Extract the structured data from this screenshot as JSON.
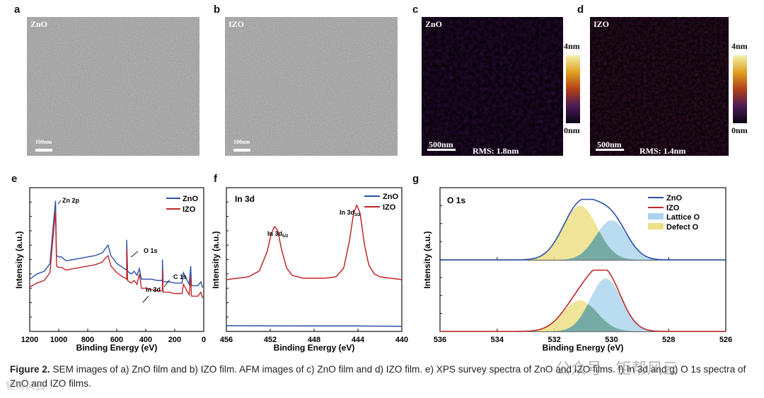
{
  "panels": {
    "a": {
      "letter": "a",
      "label": "ZnO",
      "scale": "100nm"
    },
    "b": {
      "letter": "b",
      "label": "IZO",
      "scale": "100nm"
    },
    "c": {
      "letter": "c",
      "label": "ZnO",
      "scale": "500nm",
      "rms": "RMS: 1.8nm",
      "cb_top": "4nm",
      "cb_bottom": "0nm"
    },
    "d": {
      "letter": "d",
      "label": "IZO",
      "scale": "500nm",
      "rms": "RMS: 1.4nm",
      "cb_top": "4nm",
      "cb_bottom": "0nm"
    },
    "e": {
      "letter": "e"
    },
    "f": {
      "letter": "f"
    },
    "g": {
      "letter": "g"
    }
  },
  "colors": {
    "zno": "#2b4fa8",
    "izo": "#c0282a",
    "lattice": "#a9d3ee",
    "defect": "#ecdf86",
    "overlap": "#5f9c92"
  },
  "chart_data": [
    {
      "id": "e",
      "type": "line",
      "title": "",
      "xlabel": "Binding Energy (eV)",
      "ylabel": "Intensity (a.u.)",
      "xlim": [
        1200,
        0
      ],
      "x_ticks": [
        "1200",
        "1000",
        "800",
        "600",
        "400",
        "200",
        "0"
      ],
      "legend": [
        "ZnO",
        "IZO"
      ],
      "legend_position": "top-right",
      "series": [
        {
          "name": "ZnO",
          "points": [
            [
              1200,
              40
            ],
            [
              1150,
              44
            ],
            [
              1100,
              46
            ],
            [
              1060,
              52
            ],
            [
              1045,
              72
            ],
            [
              1022,
              100
            ],
            [
              1015,
              58
            ],
            [
              1000,
              57
            ],
            [
              980,
              57
            ],
            [
              950,
              54
            ],
            [
              900,
              55
            ],
            [
              850,
              56
            ],
            [
              800,
              57
            ],
            [
              750,
              58
            ],
            [
              700,
              60
            ],
            [
              680,
              63
            ],
            [
              660,
              66
            ],
            [
              640,
              58
            ],
            [
              600,
              52
            ],
            [
              560,
              49
            ],
            [
              531,
              47
            ],
            [
              531,
              70
            ],
            [
              525,
              46
            ],
            [
              500,
              44
            ],
            [
              480,
              46
            ],
            [
              460,
              43
            ],
            [
              444,
              48
            ],
            [
              430,
              40
            ],
            [
              400,
              40
            ],
            [
              360,
              40
            ],
            [
              320,
              39
            ],
            [
              285,
              39
            ],
            [
              285,
              55
            ],
            [
              280,
              38
            ],
            [
              240,
              38
            ],
            [
              200,
              37
            ],
            [
              150,
              37
            ],
            [
              140,
              45
            ],
            [
              100,
              36
            ],
            [
              90,
              50
            ],
            [
              85,
              35
            ],
            [
              40,
              35
            ],
            [
              20,
              38
            ],
            [
              10,
              34
            ],
            [
              0,
              34
            ]
          ]
        },
        {
          "name": "IZO",
          "points": [
            [
              1200,
              34
            ],
            [
              1150,
              37
            ],
            [
              1100,
              39
            ],
            [
              1060,
              45
            ],
            [
              1045,
              65
            ],
            [
              1022,
              92
            ],
            [
              1015,
              50
            ],
            [
              1000,
              49
            ],
            [
              980,
              49
            ],
            [
              950,
              47
            ],
            [
              900,
              48
            ],
            [
              850,
              49
            ],
            [
              800,
              50
            ],
            [
              750,
              51
            ],
            [
              700,
              53
            ],
            [
              680,
              56
            ],
            [
              660,
              58
            ],
            [
              640,
              50
            ],
            [
              600,
              45
            ],
            [
              560,
              42
            ],
            [
              531,
              40
            ],
            [
              531,
              63
            ],
            [
              525,
              39
            ],
            [
              500,
              37
            ],
            [
              480,
              39
            ],
            [
              460,
              36
            ],
            [
              444,
              44
            ],
            [
              430,
              33
            ],
            [
              400,
              33
            ],
            [
              360,
              32
            ],
            [
              320,
              31
            ],
            [
              285,
              31
            ],
            [
              285,
              47
            ],
            [
              280,
              30
            ],
            [
              240,
              30
            ],
            [
              200,
              29
            ],
            [
              150,
              29
            ],
            [
              140,
              36
            ],
            [
              100,
              28
            ],
            [
              90,
              42
            ],
            [
              85,
              27
            ],
            [
              40,
              27
            ],
            [
              20,
              30
            ],
            [
              10,
              26
            ],
            [
              0,
              26
            ]
          ]
        }
      ],
      "annotations": [
        "Zn 2p",
        "O 1s",
        "C 1s",
        "In 3d"
      ]
    },
    {
      "id": "f",
      "type": "line",
      "title": "In 3d",
      "xlabel": "Binding Energy (eV)",
      "ylabel": "Intensity (a.u.)",
      "xlim": [
        456,
        440
      ],
      "x_ticks": [
        "456",
        "452",
        "448",
        "444",
        "440"
      ],
      "legend": [
        "ZnO",
        "IZO"
      ],
      "legend_position": "top-right",
      "series": [
        {
          "name": "ZnO",
          "points": [
            [
              456,
              4
            ],
            [
              452,
              3.9
            ],
            [
              448,
              3.8
            ],
            [
              444,
              3.8
            ],
            [
              440,
              3.6
            ]
          ]
        },
        {
          "name": "IZO",
          "points": [
            [
              456,
              36
            ],
            [
              454,
              38
            ],
            [
              453,
              42
            ],
            [
              452.3,
              55
            ],
            [
              451.9,
              68
            ],
            [
              451.6,
              73
            ],
            [
              451.3,
              70
            ],
            [
              451,
              58
            ],
            [
              450.5,
              44
            ],
            [
              450,
              39
            ],
            [
              449,
              37
            ],
            [
              448,
              37
            ],
            [
              447,
              37
            ],
            [
              446,
              38
            ],
            [
              445.3,
              44
            ],
            [
              444.8,
              62
            ],
            [
              444.4,
              82
            ],
            [
              444.1,
              88
            ],
            [
              443.8,
              82
            ],
            [
              443.4,
              60
            ],
            [
              443,
              46
            ],
            [
              442.5,
              40
            ],
            [
              442,
              38
            ],
            [
              441,
              37
            ],
            [
              440,
              36
            ]
          ]
        }
      ],
      "annotations": [
        "In 3d",
        "5/2",
        "In 3d",
        "3/2"
      ]
    },
    {
      "id": "g",
      "type": "area",
      "title": "O 1s",
      "xlabel": "Binding Energy (eV)",
      "ylabel": "Intensity (a.u.)",
      "xlim": [
        536,
        526
      ],
      "x_ticks": [
        "536",
        "534",
        "532",
        "530",
        "528",
        "526"
      ],
      "legend": [
        "ZnO",
        "IZO",
        "Lattice O",
        "Defect O"
      ],
      "legend_position": "top-right",
      "subplots": [
        {
          "sample": "ZnO",
          "lattice_center": 530.0,
          "lattice_height": 0.62,
          "defect_center": 531.1,
          "defect_height": 0.85
        },
        {
          "sample": "IZO",
          "lattice_center": 530.2,
          "lattice_height": 0.82,
          "defect_center": 531.1,
          "defect_height": 0.48
        }
      ]
    }
  ],
  "caption": {
    "label": "Figure 2.",
    "text": "SEM images of a) ZnO film and b) IZO film. AFM images of c) ZnO film and d) IZO film. e) XPS survey spectra of ZnO and IZO films. f) In 3d and g) O 1s spectra of ZnO and IZO films."
  },
  "watermark": {
    "top": "公众号 · 钜帮风云",
    "bottom": "钜帮风云"
  }
}
